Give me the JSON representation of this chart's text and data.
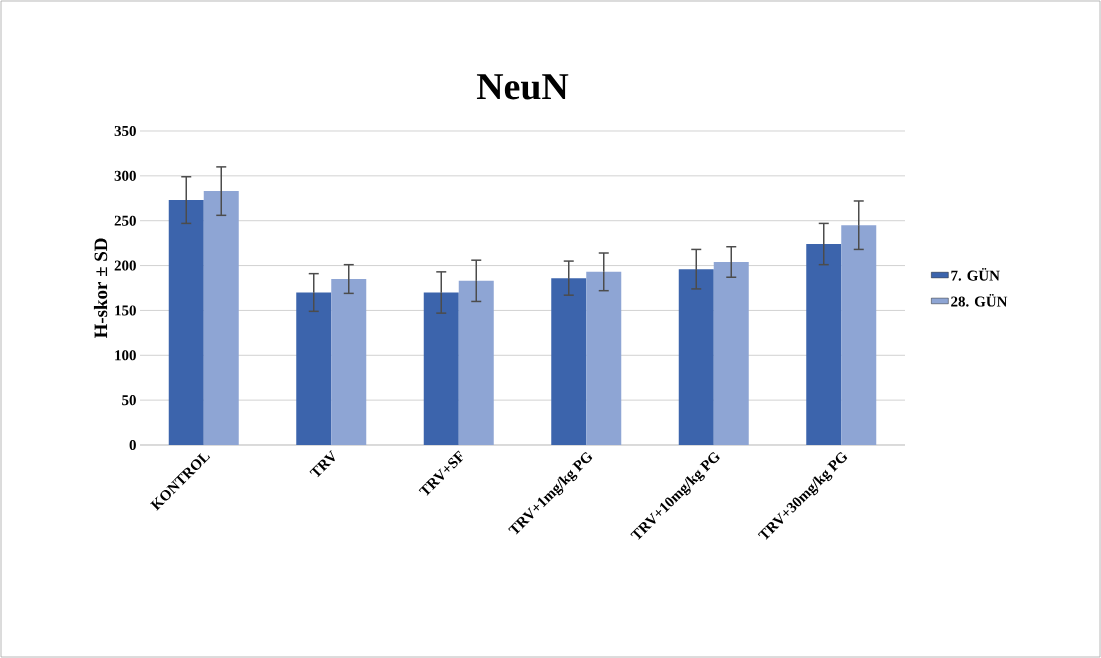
{
  "chart_data": {
    "type": "bar",
    "title": "NeuN",
    "ylabel": "H-skor ± SD",
    "categories": [
      "KONTROL",
      "TRV",
      "TRV+SF",
      "TRV+1mg/kg PG",
      "TRV+10mg/kg PG",
      "TRV+30mg/kg PG"
    ],
    "series": [
      {
        "name": "7. GÜN",
        "color": "#3c64ac",
        "values": [
          273,
          170,
          170,
          186,
          196,
          224
        ],
        "errors": [
          26,
          21,
          23,
          19,
          22,
          23
        ]
      },
      {
        "name": "28. GÜN",
        "color": "#8ea5d4",
        "values": [
          283,
          185,
          183,
          193,
          204,
          245
        ],
        "errors": [
          27,
          16,
          23,
          21,
          17,
          27
        ]
      }
    ],
    "ylim": [
      0,
      350
    ],
    "yticks": [
      0,
      50,
      100,
      150,
      200,
      250,
      300,
      350
    ],
    "grid": "y",
    "legend": "right"
  }
}
